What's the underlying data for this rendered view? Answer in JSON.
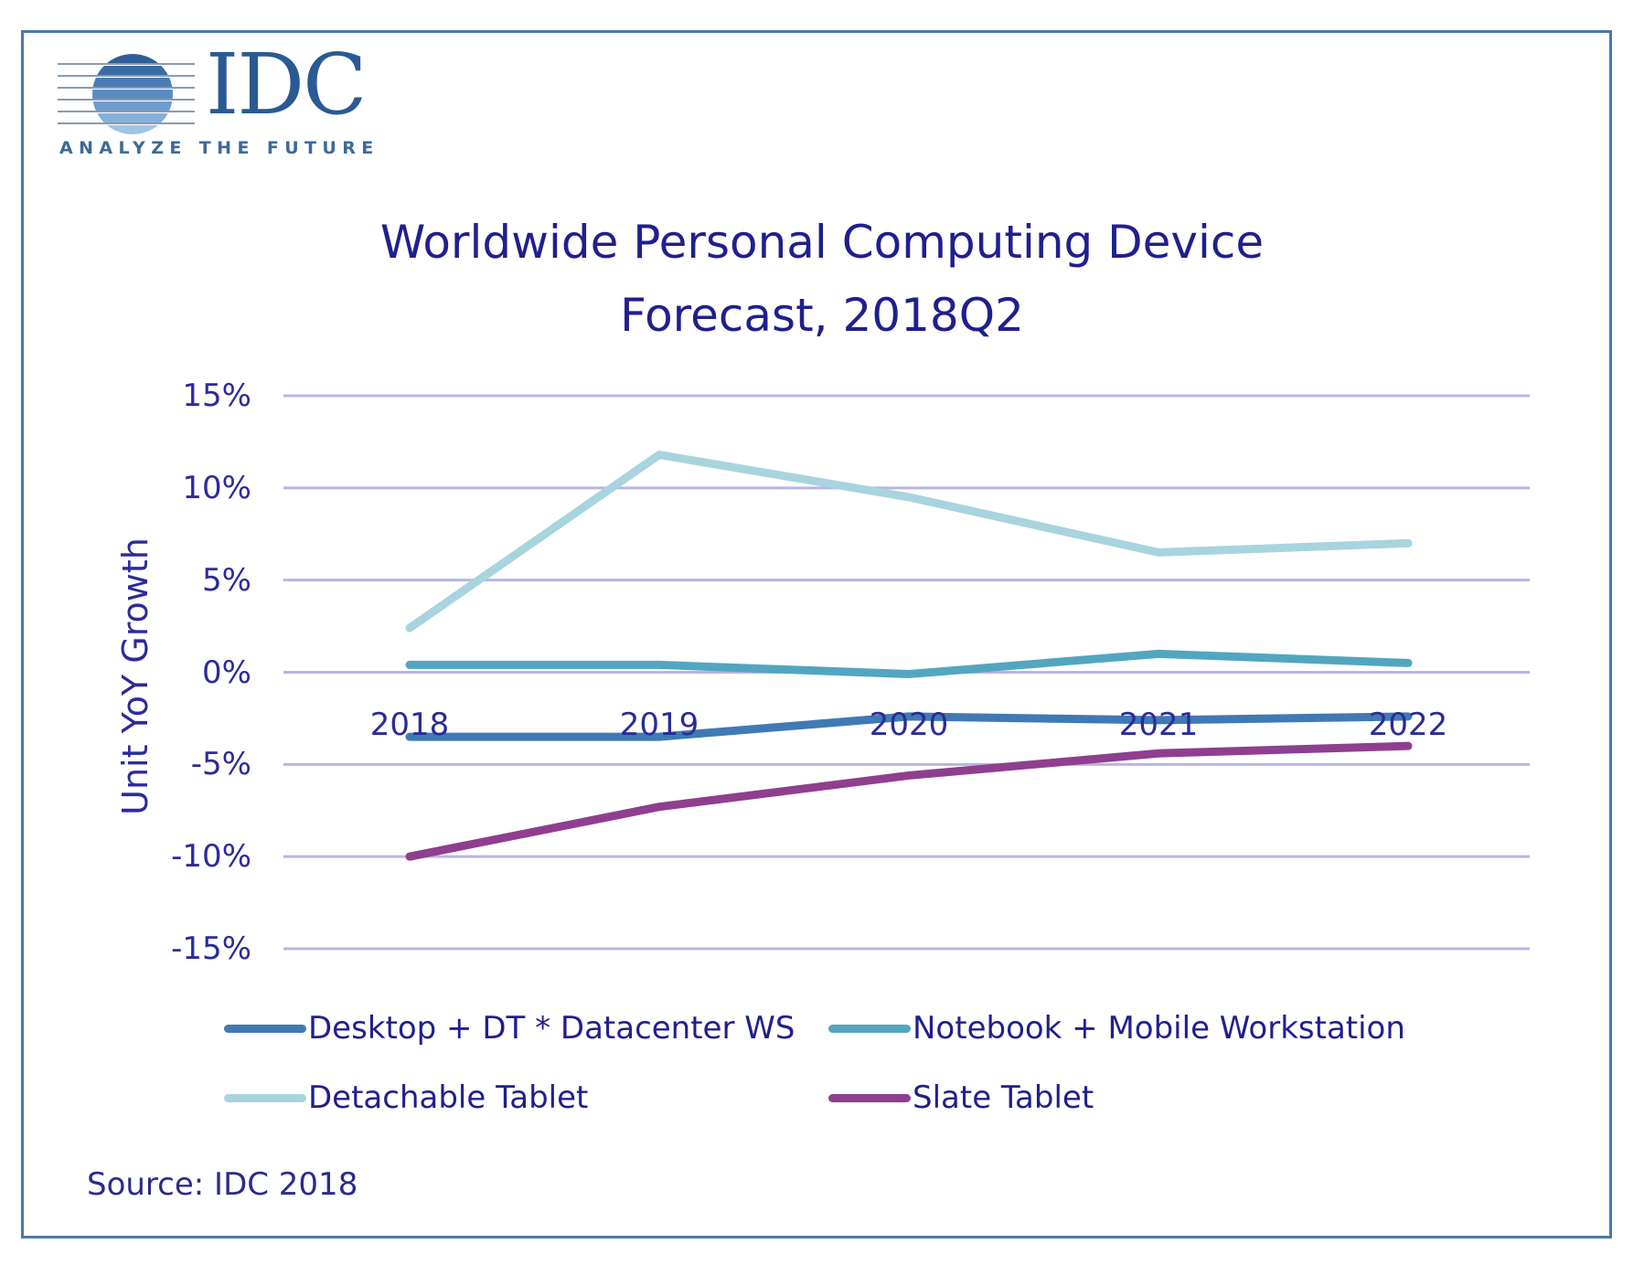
{
  "logo": {
    "name": "IDC",
    "tagline": "ANALYZE THE FUTURE"
  },
  "source": "Source: IDC 2018",
  "chart_data": {
    "type": "line",
    "title": "Worldwide Personal Computing Device Forecast, 2018Q2",
    "title_lines": [
      "Worldwide Personal Computing Device",
      "Forecast, 2018Q2"
    ],
    "xlabel": "",
    "ylabel": "Unit YoY Growth",
    "categories": [
      "2018",
      "2019",
      "2020",
      "2021",
      "2022"
    ],
    "ylim": [
      -15,
      15
    ],
    "yticks": [
      15,
      10,
      5,
      0,
      -5,
      -10,
      -15
    ],
    "ytick_labels": [
      "15%",
      "10%",
      "5%",
      "0%",
      "-5%",
      "-10%",
      "-15%"
    ],
    "grid": true,
    "legend_position": "bottom",
    "series": [
      {
        "name": "Desktop + DT * Datacenter WS",
        "color": "#3f7ab5",
        "values": [
          -3.5,
          -3.5,
          -2.4,
          -2.6,
          -2.4
        ]
      },
      {
        "name": "Notebook + Mobile Workstation",
        "color": "#52a6c0",
        "values": [
          0.4,
          0.4,
          -0.1,
          1.0,
          0.5
        ]
      },
      {
        "name": "Detachable Tablet",
        "color": "#a8d4df",
        "values": [
          2.4,
          11.8,
          9.5,
          6.5,
          7.0
        ]
      },
      {
        "name": "Slate Tablet",
        "color": "#8e3f8e",
        "values": [
          -10.0,
          -7.3,
          -5.6,
          -4.4,
          -4.0
        ]
      }
    ],
    "legend_order": [
      0,
      1,
      2,
      3
    ]
  },
  "colors": {
    "frame": "#4a78a8",
    "grid": "#b8b4e6",
    "text": "#1f1f8f"
  }
}
